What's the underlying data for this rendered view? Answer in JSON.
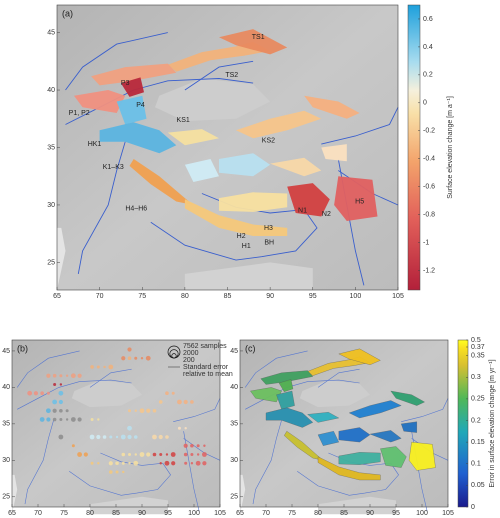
{
  "panels": [
    {
      "label": "(a)",
      "xlim": [
        65,
        105
      ],
      "ylim": [
        22.6,
        47.4
      ],
      "xticks": [
        65,
        70,
        75,
        80,
        85,
        90,
        95,
        100,
        105
      ],
      "yticks": [
        25,
        30,
        35,
        40,
        45
      ],
      "colorbar": {
        "label": "Surface elevation change [m a⁻¹]",
        "lim": [
          -1.34,
          0.7
        ],
        "ticks": [
          0.6,
          0.4,
          0.2,
          0,
          -0.2,
          -0.4,
          -0.6,
          -0.8,
          -1,
          -1.2
        ]
      },
      "regions": [
        "TS1",
        "TS2",
        "P3",
        "P4",
        "P1, P2",
        "KS1",
        "KS2",
        "HK1",
        "K1–K3",
        "H4–H6",
        "N1",
        "N2",
        "H5",
        "H3",
        "H2",
        "H1",
        "BH"
      ]
    },
    {
      "label": "(b)",
      "xlim": [
        65,
        105
      ],
      "ylim": [
        23.6,
        46.5
      ],
      "xticks": [
        65,
        70,
        75,
        80,
        85,
        90,
        95,
        100,
        105
      ],
      "yticks": [
        25,
        30,
        35,
        40,
        45
      ],
      "legend": {
        "entries": [
          "7562 samples",
          "2000",
          "200"
        ],
        "note": [
          "Standard error",
          "relative to mean"
        ]
      }
    },
    {
      "label": "(c)",
      "xlim": [
        65,
        105
      ],
      "ylim": [
        23.6,
        46.5
      ],
      "xticks": [
        65,
        70,
        75,
        80,
        85,
        90,
        95,
        100,
        105
      ],
      "yticks": [
        25,
        30,
        35,
        40,
        45
      ],
      "colorbar": {
        "label": "Error in surface elevation change [m yr⁻¹]",
        "lim": [
          0,
          0.5
        ],
        "ticks": [
          0.5,
          0.37,
          0.35,
          0.3,
          0.25,
          0.2,
          0.15,
          0.1,
          0.05,
          0
        ]
      }
    }
  ]
}
